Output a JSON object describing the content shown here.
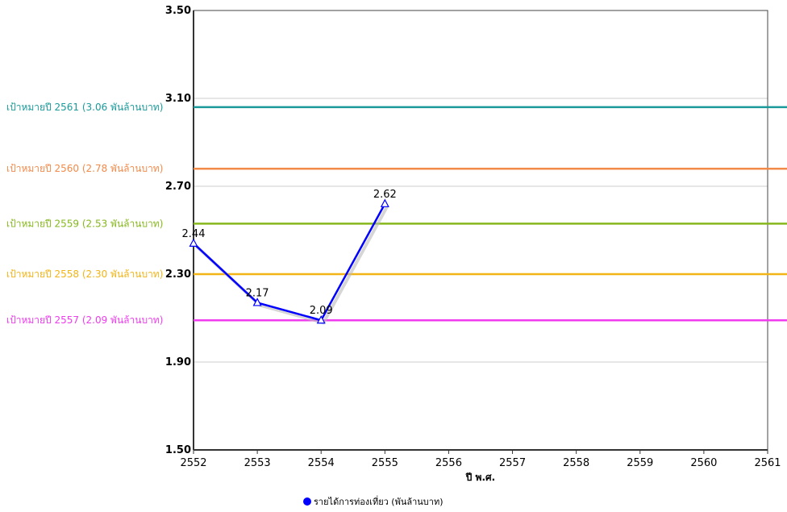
{
  "chart_data": {
    "type": "line",
    "xlabel": "ปี พ.ศ.",
    "ylabel": "",
    "x": [
      2552,
      2553,
      2554,
      2555,
      2556,
      2557,
      2558,
      2559,
      2560,
      2561
    ],
    "xlim": [
      2552,
      2561
    ],
    "ylim": [
      1.5,
      3.5
    ],
    "y_ticks": [
      "1.50",
      "1.90",
      "2.30",
      "2.70",
      "3.10",
      "3.50"
    ],
    "grid": "horizontal",
    "series": [
      {
        "name": "รายได้การท่องเที่ยว (พันล้านบาท)",
        "color": "#0000ff",
        "marker": "triangle",
        "x": [
          2552,
          2553,
          2554,
          2555
        ],
        "values": [
          2.44,
          2.17,
          2.09,
          2.62
        ],
        "labels": [
          "2.44",
          "2.17",
          "2.09",
          "2.62"
        ]
      }
    ],
    "reference_lines": [
      {
        "label": "เป้าหมายปี 2561 (3.06 พันล้านบาท)",
        "value": 3.06,
        "color": "#1a9a9a"
      },
      {
        "label": "เป้าหมายปี 2560 (2.78 พันล้านบาท)",
        "value": 2.78,
        "color": "#f28a4a"
      },
      {
        "label": "เป้าหมายปี 2559 (2.53 พันล้านบาท)",
        "value": 2.53,
        "color": "#86b81c"
      },
      {
        "label": "เป้าหมายปี 2558 (2.30 พันล้านบาท)",
        "value": 2.3,
        "color": "#f2b416"
      },
      {
        "label": "เป้าหมายปี 2557 (2.09 พันล้านบาท)",
        "value": 2.09,
        "color": "#ee3cee"
      }
    ],
    "legend": {
      "position": "bottom-center"
    }
  }
}
